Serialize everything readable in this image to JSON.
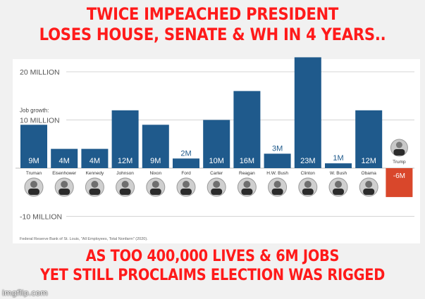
{
  "meme": {
    "top_line1": "TWICE IMPEACHED PRESIDENT",
    "top_line2": "LOSES HOUSE, SENATE & WH IN 4 YEARS..",
    "bottom_line1": "AS TOO 400,000 LIVES & 6M JOBS",
    "bottom_line2": "YET STILL PROCLAIMS ELECTION WAS RIGGED",
    "watermark": "imgflip.com"
  },
  "colors": {
    "bar_positive": "#1f5a8c",
    "bar_negative": "#d9472b",
    "meme_text": "#ff1a1a",
    "axis_text": "#555555"
  },
  "chart_data": {
    "type": "bar",
    "ylabel": "Job growth:",
    "ylim": [
      -12000000,
      24000000
    ],
    "ticks": [
      {
        "value": 20000000,
        "label": "20 MILLION"
      },
      {
        "value": 10000000,
        "label": "10 MILLION"
      },
      {
        "value": -10000000,
        "label": "-10 MILLION"
      }
    ],
    "categories": [
      "Truman",
      "Eisenhower",
      "Kennedy",
      "Johnson",
      "Nixon",
      "Ford",
      "Carter",
      "Reagan",
      "H.W. Bush",
      "Clinton",
      "W. Bush",
      "Obama",
      "Trump"
    ],
    "values": [
      9000000,
      4000000,
      4000000,
      12000000,
      9000000,
      2000000,
      10000000,
      16000000,
      3000000,
      23000000,
      1000000,
      12000000,
      -6000000
    ],
    "data_labels": [
      "9M",
      "4M",
      "4M",
      "12M",
      "9M",
      "2M",
      "10M",
      "16M",
      "3M",
      "23M",
      "1M",
      "12M",
      "-6M"
    ],
    "source": "Federal Reserve Bank of St. Louis, \"All Employees, Total Nonfarm\" (2020).",
    "grid": true
  }
}
